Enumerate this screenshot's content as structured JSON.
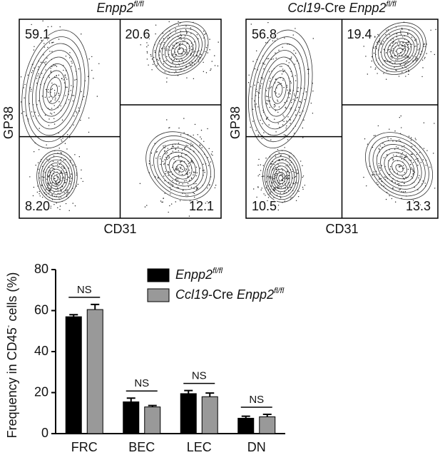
{
  "chart_data": [
    {
      "type": "contour",
      "title": [
        {
          "text": "Enpp2",
          "style": "italic"
        },
        {
          "text": "fl/fl",
          "style": "italic-sup"
        }
      ],
      "x_label": "CD31",
      "y_label": "GP38",
      "quadrant_labels": [
        "59.1",
        "20.6",
        "8.20",
        "12.1"
      ]
    },
    {
      "type": "contour",
      "title": [
        {
          "text": "Ccl19",
          "style": "italic"
        },
        {
          "text": "-Cre ",
          "style": "normal"
        },
        {
          "text": "Enpp2",
          "style": "italic"
        },
        {
          "text": "fl/fl",
          "style": "italic-sup"
        }
      ],
      "x_label": "CD31",
      "y_label": "GP38",
      "quadrant_labels": [
        "56.8",
        "19.4",
        "10.5",
        "13.3"
      ]
    },
    {
      "type": "bar",
      "y_label": [
        {
          "text": "Frequency in CD45",
          "style": "normal"
        },
        {
          "text": "-",
          "style": "sup"
        },
        {
          "text": " cells (%)",
          "style": "normal"
        }
      ],
      "categories": [
        "FRC",
        "BEC",
        "LEC",
        "DN"
      ],
      "series": [
        {
          "name": [
            {
              "text": "Enpp2",
              "style": "italic"
            },
            {
              "text": "fl/fl",
              "style": "italic-sup"
            }
          ],
          "color": "#000000",
          "values": [
            57,
            15.5,
            19.5,
            7.5
          ],
          "errors": [
            1,
            1.8,
            1.5,
            1
          ]
        },
        {
          "name": [
            {
              "text": "Ccl19",
              "style": "italic"
            },
            {
              "text": "-Cre ",
              "style": "normal"
            },
            {
              "text": "Enpp2",
              "style": "italic"
            },
            {
              "text": "fl/fl",
              "style": "italic-sup"
            }
          ],
          "color": "#999999",
          "values": [
            60.5,
            13,
            18,
            8.2
          ],
          "errors": [
            2.5,
            0.7,
            1.8,
            1.2
          ]
        }
      ],
      "annotations": [
        "NS",
        "NS",
        "NS",
        "NS"
      ],
      "ylim": [
        0,
        80
      ],
      "yticks": [
        0,
        20,
        40,
        60,
        80
      ]
    }
  ]
}
